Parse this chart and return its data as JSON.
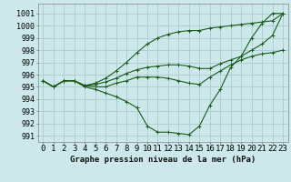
{
  "background_color": "#cce8ea",
  "grid_color": "#aacccc",
  "line_color": "#1a5c1a",
  "marker_color": "#1a5c1a",
  "xlabel": "Graphe pression niveau de la mer (hPa)",
  "xlabel_fontsize": 6.5,
  "ylabel_fontsize": 6,
  "xlim": [
    -0.5,
    23.5
  ],
  "ylim": [
    990.5,
    1001.8
  ],
  "yticks": [
    991,
    992,
    993,
    994,
    995,
    996,
    997,
    998,
    999,
    1000,
    1001
  ],
  "xticks": [
    0,
    1,
    2,
    3,
    4,
    5,
    6,
    7,
    8,
    9,
    10,
    11,
    12,
    13,
    14,
    15,
    16,
    17,
    18,
    19,
    20,
    21,
    22,
    23
  ],
  "series": [
    [
      995.5,
      995.0,
      995.5,
      995.5,
      995.0,
      994.8,
      994.5,
      994.2,
      993.8,
      993.3,
      991.8,
      991.3,
      991.3,
      991.2,
      991.1,
      991.8,
      993.5,
      994.8,
      996.6,
      997.5,
      999.0,
      1000.2,
      1001.0,
      1001.0
    ],
    [
      995.5,
      995.0,
      995.5,
      995.5,
      995.1,
      995.0,
      995.0,
      995.3,
      995.5,
      995.8,
      995.8,
      995.8,
      995.7,
      995.5,
      995.3,
      995.2,
      995.8,
      996.3,
      996.8,
      997.2,
      997.5,
      997.7,
      997.8,
      998.0
    ],
    [
      995.5,
      995.0,
      995.5,
      995.5,
      995.1,
      995.2,
      995.4,
      995.7,
      996.1,
      996.4,
      996.6,
      996.7,
      996.8,
      996.8,
      996.7,
      996.5,
      996.5,
      996.9,
      997.2,
      997.5,
      998.0,
      998.5,
      999.2,
      1001.0
    ],
    [
      995.5,
      995.0,
      995.5,
      995.5,
      995.1,
      995.3,
      995.7,
      996.3,
      997.0,
      997.8,
      998.5,
      999.0,
      999.3,
      999.5,
      999.6,
      999.6,
      999.8,
      999.9,
      1000.0,
      1000.1,
      1000.2,
      1000.3,
      1000.4,
      1001.0
    ]
  ]
}
